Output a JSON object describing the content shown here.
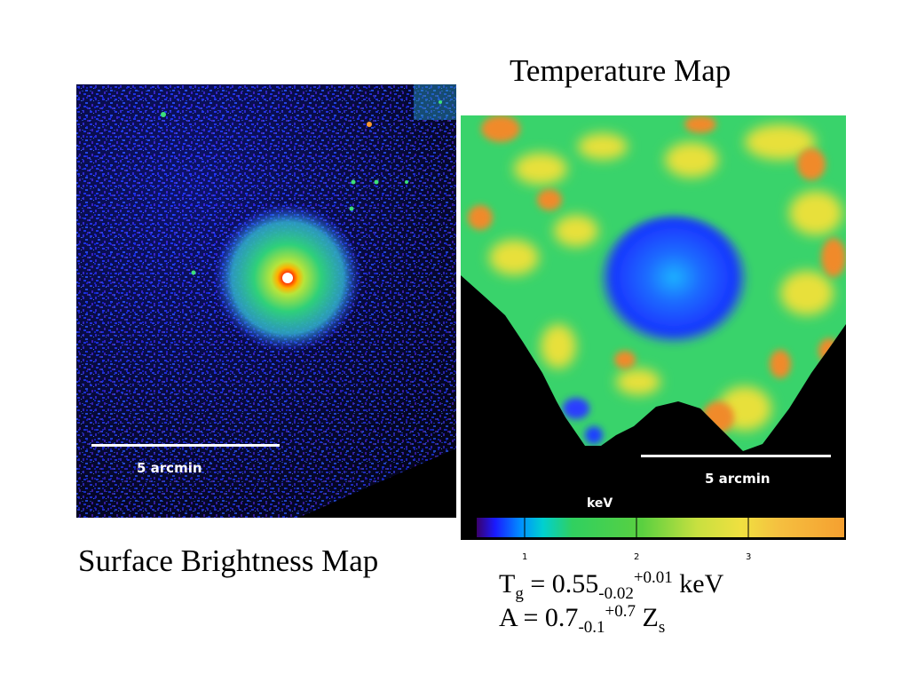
{
  "titles": {
    "temperature_map": "Temperature Map",
    "surface_brightness_map": "Surface Brightness Map"
  },
  "surface_brightness_panel": {
    "scale_bar_label": "5 arcmin"
  },
  "temperature_panel": {
    "scale_bar_label": "5 arcmin",
    "colorbar_unit": "keV",
    "colorbar_ticks": [
      "1",
      "2",
      "3"
    ]
  },
  "formulas": {
    "temperature": {
      "symbol": "T",
      "subscript": "g",
      "value": " = 0.55",
      "minus_error": "-0.02",
      "plus_error": "+0.01",
      "unit": " keV"
    },
    "abundance": {
      "symbol": "A = 0.7",
      "minus_error": "-0.1",
      "plus_error": "+0.7",
      "unit": " Z",
      "unit_subscript": "s"
    }
  },
  "colors": {
    "background": "#ffffff",
    "panel_background": "#000000",
    "noise_blue": "#2a3cff",
    "halo_green": "#2fd07a",
    "core_red": "#ff2200",
    "temp_green": "#39d36b",
    "temp_yellow": "#e8e03a",
    "temp_orange": "#f08a2a",
    "temp_blue": "#1548ff"
  }
}
